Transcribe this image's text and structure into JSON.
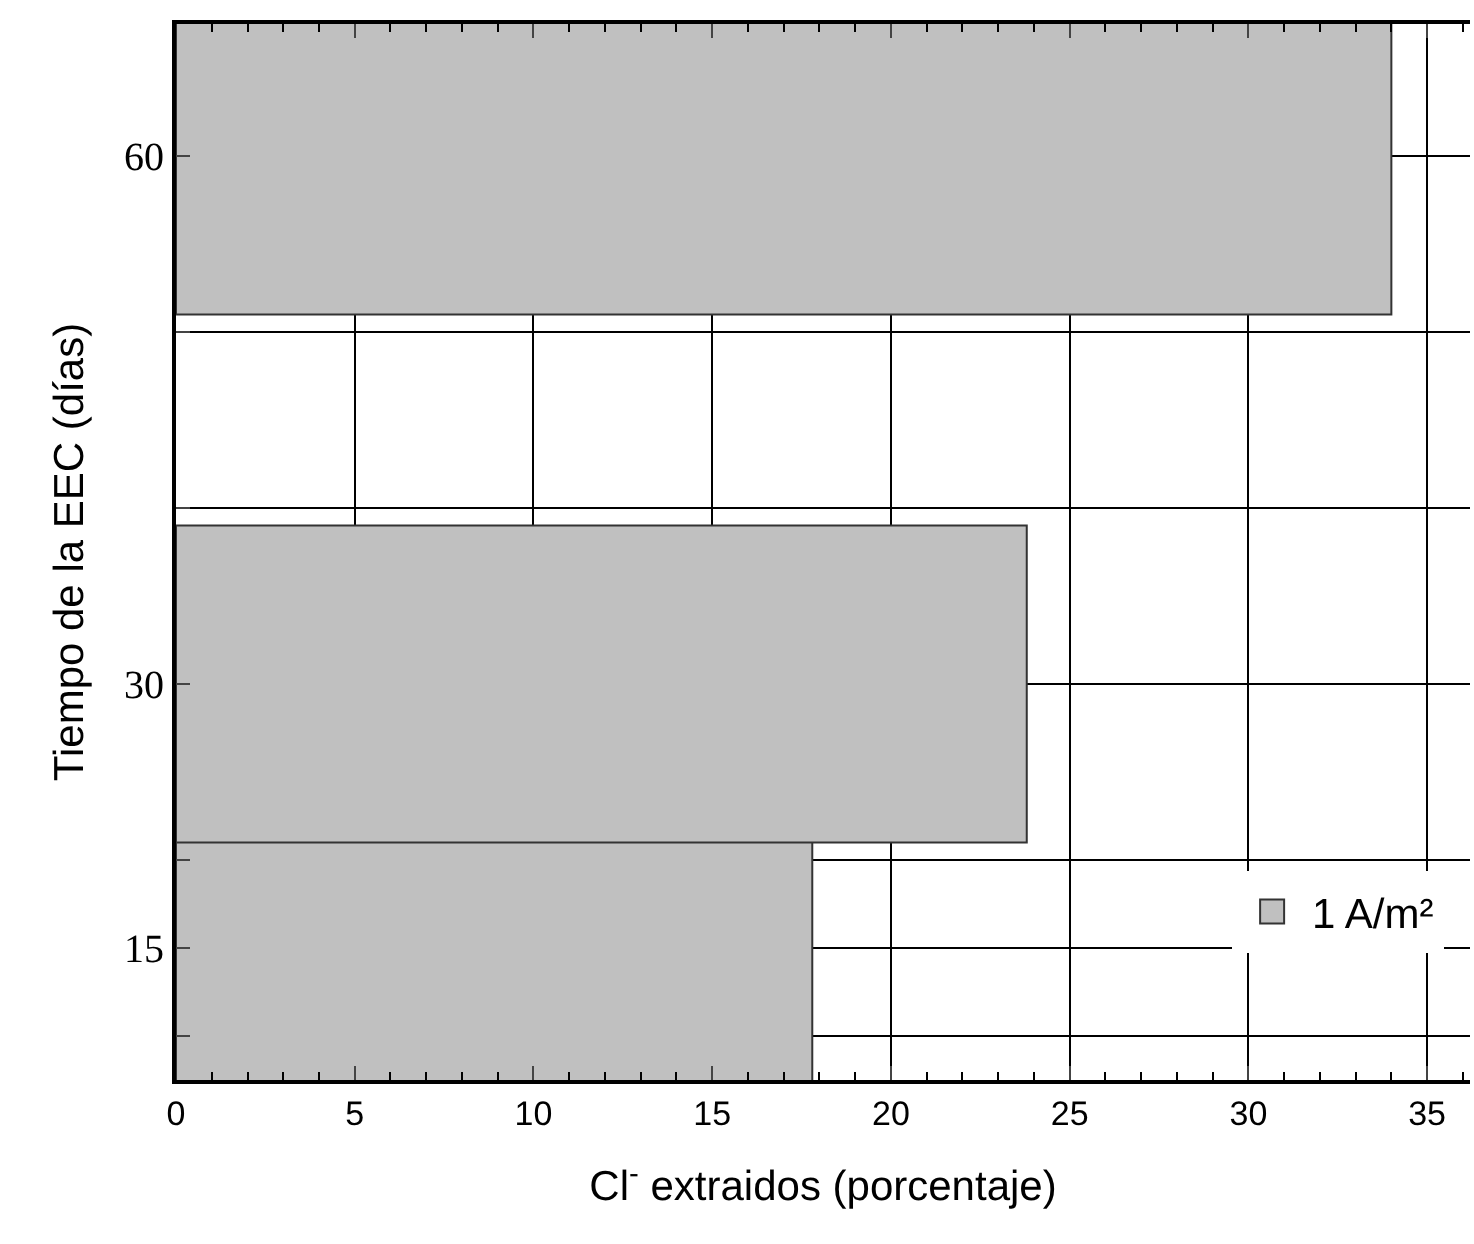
{
  "chart_data": {
    "type": "bar",
    "orientation": "horizontal",
    "x": [
      15,
      30,
      60
    ],
    "series": [
      {
        "name": "1 A/m²",
        "color": "#c0c0c0",
        "values": [
          17.8,
          23.8,
          34.0
        ]
      }
    ],
    "xlabel": "Cl$^{-}$ extraidos (porcentaje)",
    "ylabel": "Tiempo de la EEC (días)",
    "xlim": [
      0,
      36.2
    ],
    "xticks": [
      0,
      5,
      10,
      15,
      20,
      25,
      30,
      35
    ],
    "ylim": [
      7.5,
      67.5
    ],
    "yticks": [
      {
        "value": 10,
        "label": null
      },
      15,
      {
        "value": 20,
        "label": null
      },
      30,
      {
        "value": 40,
        "label": null
      },
      {
        "value": 50,
        "label": null
      },
      60
    ],
    "grid": true,
    "legend": "bottom right"
  }
}
